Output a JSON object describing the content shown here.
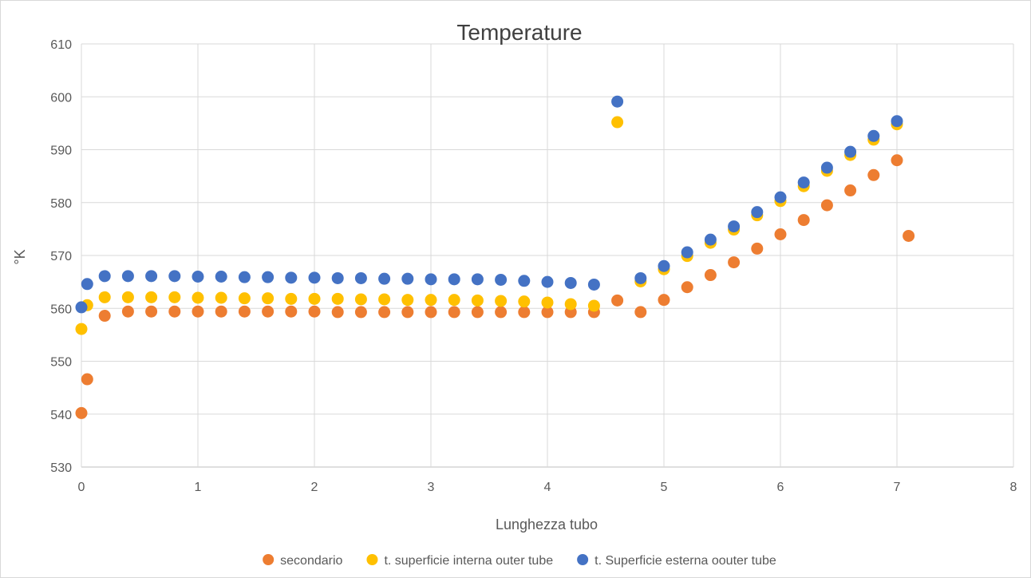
{
  "chart_data": {
    "type": "scatter",
    "title": "Temperature",
    "xlabel": "Lunghezza tubo",
    "ylabel": "°K",
    "xlim": [
      0,
      8
    ],
    "ylim": [
      530,
      610
    ],
    "xticks": [
      "0",
      "1",
      "2",
      "3",
      "4",
      "5",
      "6",
      "7",
      "8"
    ],
    "yticks": [
      "530",
      "540",
      "550",
      "560",
      "570",
      "580",
      "590",
      "600",
      "610"
    ],
    "grid": true,
    "legend_position": "bottom",
    "series": [
      {
        "name": "secondario",
        "color": "#ED7D31",
        "points": [
          [
            0,
            540.2
          ],
          [
            0.05,
            546.6
          ],
          [
            0.2,
            558.6
          ],
          [
            0.4,
            559.4
          ],
          [
            0.6,
            559.4
          ],
          [
            0.8,
            559.4
          ],
          [
            1.0,
            559.4
          ],
          [
            1.2,
            559.4
          ],
          [
            1.4,
            559.4
          ],
          [
            1.6,
            559.4
          ],
          [
            1.8,
            559.4
          ],
          [
            2.0,
            559.4
          ],
          [
            2.2,
            559.3
          ],
          [
            2.4,
            559.3
          ],
          [
            2.6,
            559.3
          ],
          [
            2.8,
            559.3
          ],
          [
            3.0,
            559.3
          ],
          [
            3.2,
            559.3
          ],
          [
            3.4,
            559.3
          ],
          [
            3.6,
            559.3
          ],
          [
            3.8,
            559.3
          ],
          [
            4.0,
            559.3
          ],
          [
            4.2,
            559.3
          ],
          [
            4.4,
            559.3
          ],
          [
            4.6,
            561.5
          ],
          [
            4.8,
            559.3
          ],
          [
            5.0,
            561.6
          ],
          [
            5.2,
            564.0
          ],
          [
            5.4,
            566.3
          ],
          [
            5.6,
            568.7
          ],
          [
            5.8,
            571.3
          ],
          [
            6.0,
            574.0
          ],
          [
            6.2,
            576.7
          ],
          [
            6.4,
            579.5
          ],
          [
            6.6,
            582.3
          ],
          [
            6.8,
            585.2
          ],
          [
            7.0,
            588.0
          ],
          [
            7.1,
            573.7
          ]
        ]
      },
      {
        "name": "t. superficie interna outer tube",
        "color": "#FFC000",
        "points": [
          [
            0,
            556.1
          ],
          [
            0.05,
            560.6
          ],
          [
            0.2,
            562.1
          ],
          [
            0.4,
            562.1
          ],
          [
            0.6,
            562.1
          ],
          [
            0.8,
            562.1
          ],
          [
            1.0,
            562.0
          ],
          [
            1.2,
            562.0
          ],
          [
            1.4,
            561.9
          ],
          [
            1.6,
            561.9
          ],
          [
            1.8,
            561.8
          ],
          [
            2.0,
            561.8
          ],
          [
            2.2,
            561.8
          ],
          [
            2.4,
            561.7
          ],
          [
            2.6,
            561.7
          ],
          [
            2.8,
            561.6
          ],
          [
            3.0,
            561.6
          ],
          [
            3.2,
            561.6
          ],
          [
            3.4,
            561.5
          ],
          [
            3.6,
            561.4
          ],
          [
            3.8,
            561.3
          ],
          [
            4.0,
            561.1
          ],
          [
            4.2,
            560.8
          ],
          [
            4.4,
            560.5
          ],
          [
            4.6,
            595.2
          ],
          [
            4.8,
            565.1
          ],
          [
            5.0,
            567.4
          ],
          [
            5.2,
            569.9
          ],
          [
            5.4,
            572.4
          ],
          [
            5.6,
            574.9
          ],
          [
            5.8,
            577.6
          ],
          [
            6.0,
            580.3
          ],
          [
            6.2,
            583.1
          ],
          [
            6.4,
            586.0
          ],
          [
            6.6,
            589.0
          ],
          [
            6.8,
            591.9
          ],
          [
            7.0,
            594.8
          ]
        ]
      },
      {
        "name": "t. Superficie esterna oouter tube",
        "color": "#4472C4",
        "points": [
          [
            0,
            560.2
          ],
          [
            0.05,
            564.6
          ],
          [
            0.2,
            566.1
          ],
          [
            0.4,
            566.1
          ],
          [
            0.6,
            566.1
          ],
          [
            0.8,
            566.1
          ],
          [
            1.0,
            566.0
          ],
          [
            1.2,
            566.0
          ],
          [
            1.4,
            565.9
          ],
          [
            1.6,
            565.9
          ],
          [
            1.8,
            565.8
          ],
          [
            2.0,
            565.8
          ],
          [
            2.2,
            565.7
          ],
          [
            2.4,
            565.7
          ],
          [
            2.6,
            565.6
          ],
          [
            2.8,
            565.6
          ],
          [
            3.0,
            565.5
          ],
          [
            3.2,
            565.5
          ],
          [
            3.4,
            565.5
          ],
          [
            3.6,
            565.4
          ],
          [
            3.8,
            565.2
          ],
          [
            4.0,
            565.0
          ],
          [
            4.2,
            564.8
          ],
          [
            4.4,
            564.5
          ],
          [
            4.6,
            599.1
          ],
          [
            4.8,
            565.7
          ],
          [
            5.0,
            568.0
          ],
          [
            5.2,
            570.6
          ],
          [
            5.4,
            573.0
          ],
          [
            5.6,
            575.5
          ],
          [
            5.8,
            578.2
          ],
          [
            6.0,
            581.0
          ],
          [
            6.2,
            583.8
          ],
          [
            6.4,
            586.6
          ],
          [
            6.6,
            589.6
          ],
          [
            6.8,
            592.6
          ],
          [
            7.0,
            595.4
          ]
        ]
      }
    ]
  }
}
